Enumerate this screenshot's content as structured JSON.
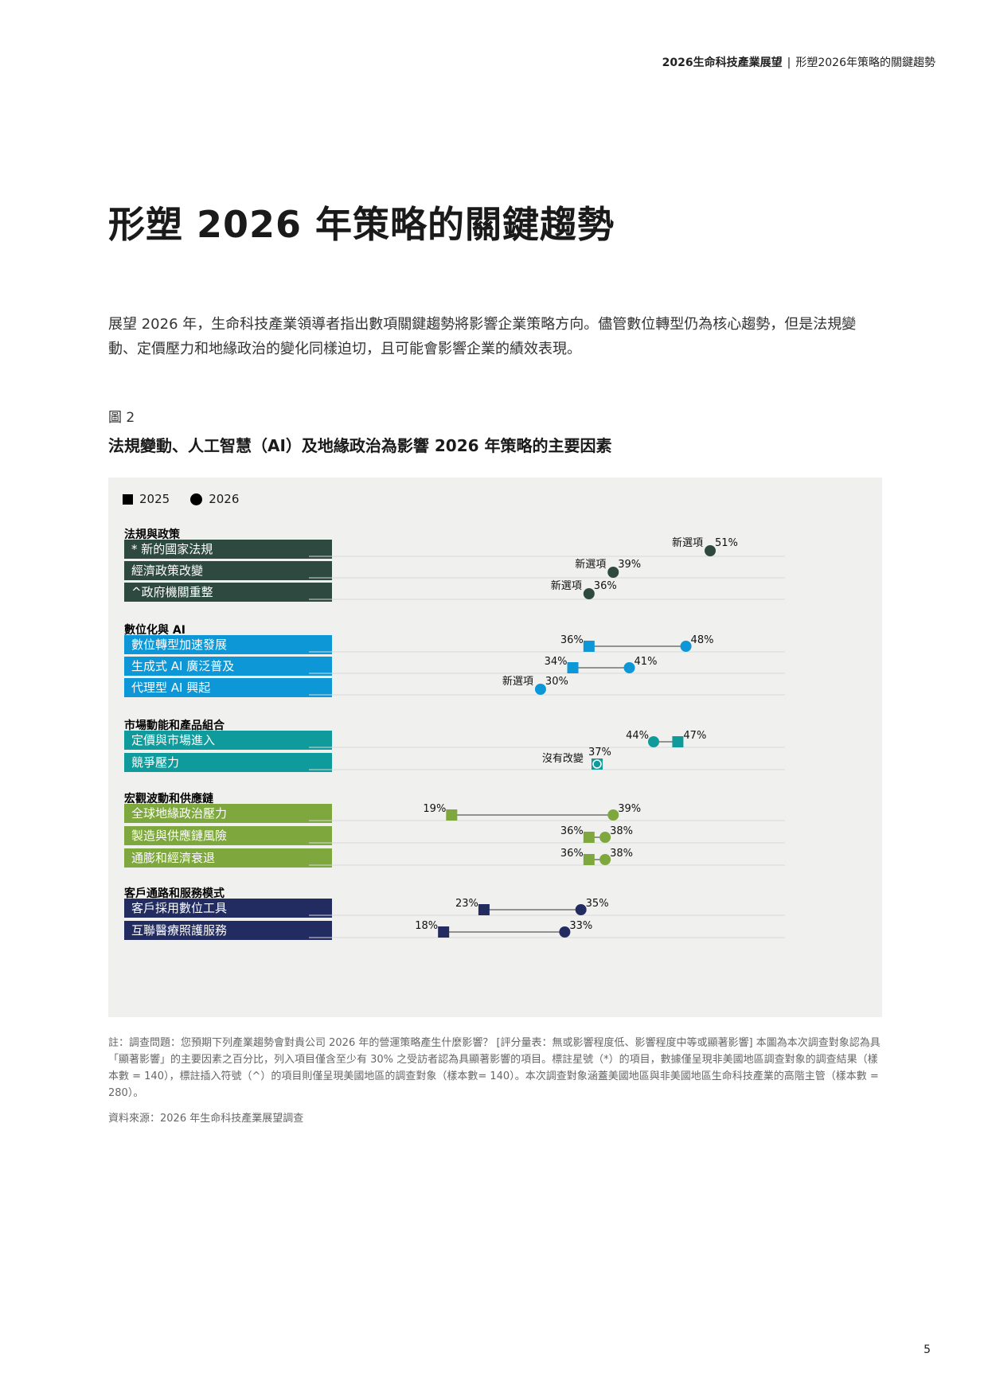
{
  "header": {
    "report": "2026生命科技產業展望",
    "separator": "|",
    "section": "形塑2026年策略的關鍵趨勢"
  },
  "title": "形塑 2026 年策略的關鍵趨勢",
  "intro": "展望 2026 年，生命科技產業領導者指出數項關鍵趨勢將影響企業策略方向。儘管數位轉型仍為核心趨勢，但是法規變動、定價壓力和地緣政治的變化同樣迫切，且可能會影響企業的績效表現。",
  "figure_label": "圖 2",
  "figure_title": "法規變動、人工智慧（AI）及地緣政治為影響 2026 年策略的主要因素",
  "legend": {
    "y2025": "2025",
    "y2026": "2026"
  },
  "colors": {
    "regulation": "#2e4a40",
    "digital": "#0d97d7",
    "market": "#0f9b9b",
    "macro": "#7ea83d",
    "customer": "#232c60",
    "line": "#333333",
    "grid": "#d8d8d8"
  },
  "chart_data": {
    "type": "dot-plot",
    "axis": {
      "xlim": [
        10,
        55
      ],
      "grid": false,
      "unit": "%"
    },
    "categories": [
      {
        "name": "法規與政策",
        "color_key": "regulation",
        "items": [
          {
            "label": "* 新的國家法規",
            "v2025": null,
            "v2026": 51,
            "note": "新選項"
          },
          {
            "label": "經濟政策改變",
            "v2025": null,
            "v2026": 39,
            "note": "新選項"
          },
          {
            "label": "^政府機關重整",
            "v2025": null,
            "v2026": 36,
            "note": "新選項"
          }
        ]
      },
      {
        "name": "數位化與 AI",
        "color_key": "digital",
        "items": [
          {
            "label": "數位轉型加速發展",
            "v2025": 36,
            "v2026": 48,
            "note": ""
          },
          {
            "label": "生成式 AI 廣泛普及",
            "v2025": 34,
            "v2026": 41,
            "note": ""
          },
          {
            "label": "代理型 AI 興起",
            "v2025": null,
            "v2026": 30,
            "note": "新選項"
          }
        ]
      },
      {
        "name": "市場動能和產品組合",
        "color_key": "market",
        "items": [
          {
            "label": "定價與市場進入",
            "v2025": 47,
            "v2026": 44,
            "note": ""
          },
          {
            "label": "競爭壓力",
            "v2025": 37,
            "v2026": 37,
            "note": "沒有改變"
          }
        ]
      },
      {
        "name": "宏觀波動和供應鏈",
        "color_key": "macro",
        "items": [
          {
            "label": "全球地緣政治壓力",
            "v2025": 19,
            "v2026": 39,
            "note": ""
          },
          {
            "label": "製造與供應鏈風險",
            "v2025": 36,
            "v2026": 38,
            "note": ""
          },
          {
            "label": "通膨和經濟衰退",
            "v2025": 36,
            "v2026": 38,
            "note": ""
          }
        ]
      },
      {
        "name": "客戶通路和服務模式",
        "color_key": "customer",
        "items": [
          {
            "label": "客戶採用數位工具",
            "v2025": 23,
            "v2026": 35,
            "note": ""
          },
          {
            "label": "互聯醫療照護服務",
            "v2025": 18,
            "v2026": 33,
            "note": ""
          }
        ]
      }
    ]
  },
  "footnote": "註：調查問題：您預期下列產業趨勢會對貴公司 2026 年的營運策略產生什麼影響？ [評分量表：無或影響程度低、影響程度中等或顯著影響] 本圖為本次調查對象認為具「顯著影響」的主要因素之百分比，列入項目僅含至少有 30% 之受訪者認為具顯著影響的項目。標註星號（*）的項目，數據僅呈現非美國地區調查對象的調查結果（樣本數 = 140），標註插入符號（^）的項目則僅呈現美國地區的調查對象（樣本數= 140）。本次調查對象涵蓋美國地區與非美國地區生命科技產業的高階主管（樣本數 = 280）。",
  "source": "資料來源：2026 年生命科技產業展望調查",
  "page_number": "5"
}
